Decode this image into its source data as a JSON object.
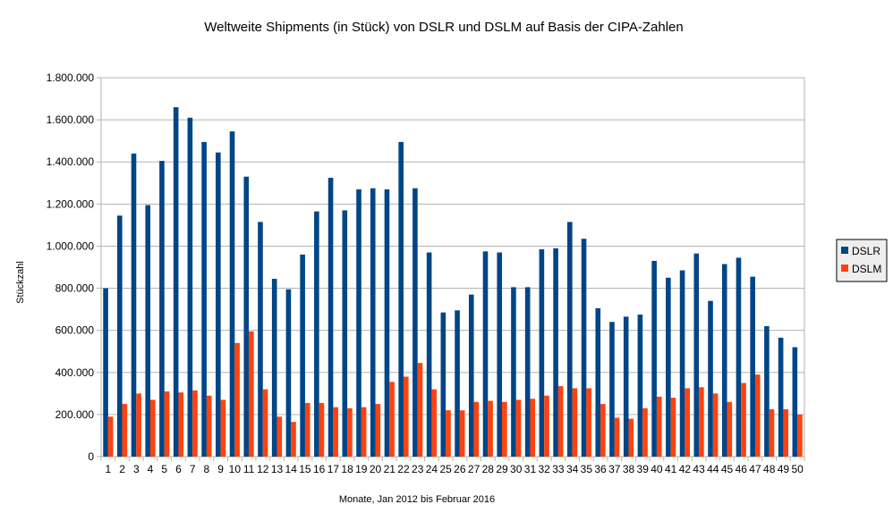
{
  "chart_data": {
    "type": "bar",
    "title": "Weltweite Shipments (in Stück) von DSLR und DSLM auf Basis der CIPA-Zahlen",
    "xlabel": "Monate, Jan 2012 bis Februar 2016",
    "ylabel": "Stückzahl",
    "ylim": [
      0,
      1800000
    ],
    "ytick_values": [
      0,
      200000,
      400000,
      600000,
      800000,
      1000000,
      1200000,
      1400000,
      1600000,
      1800000
    ],
    "ytick_labels": [
      "0",
      "200.000",
      "400.000",
      "600.000",
      "800.000",
      "1.000.000",
      "1.200.000",
      "1.400.000",
      "1.600.000",
      "1.800.000"
    ],
    "grid": true,
    "legend_position": "right",
    "categories": [
      "1",
      "2",
      "3",
      "4",
      "5",
      "6",
      "7",
      "8",
      "9",
      "10",
      "11",
      "12",
      "13",
      "14",
      "15",
      "16",
      "17",
      "18",
      "19",
      "20",
      "21",
      "22",
      "23",
      "24",
      "25",
      "26",
      "27",
      "28",
      "29",
      "30",
      "31",
      "32",
      "33",
      "34",
      "35",
      "36",
      "37",
      "38",
      "39",
      "40",
      "41",
      "42",
      "43",
      "44",
      "45",
      "46",
      "47",
      "48",
      "49",
      "50"
    ],
    "series": [
      {
        "name": "DSLR",
        "color": "#004586",
        "values": [
          800000,
          1145000,
          1440000,
          1195000,
          1405000,
          1660000,
          1610000,
          1495000,
          1445000,
          1545000,
          1330000,
          1115000,
          845000,
          795000,
          960000,
          1165000,
          1325000,
          1170000,
          1270000,
          1275000,
          1270000,
          1495000,
          1275000,
          970000,
          685000,
          695000,
          770000,
          975000,
          970000,
          805000,
          805000,
          985000,
          990000,
          1115000,
          1035000,
          705000,
          640000,
          665000,
          675000,
          930000,
          850000,
          885000,
          965000,
          740000,
          915000,
          945000,
          855000,
          620000,
          565000,
          520000
        ]
      },
      {
        "name": "DSLM",
        "color": "#ff420e",
        "values": [
          190000,
          250000,
          300000,
          270000,
          310000,
          305000,
          315000,
          290000,
          270000,
          540000,
          595000,
          320000,
          190000,
          165000,
          255000,
          255000,
          235000,
          230000,
          235000,
          250000,
          355000,
          380000,
          445000,
          320000,
          220000,
          220000,
          260000,
          265000,
          260000,
          270000,
          275000,
          290000,
          335000,
          325000,
          325000,
          250000,
          185000,
          180000,
          230000,
          285000,
          280000,
          325000,
          330000,
          300000,
          260000,
          350000,
          390000,
          225000,
          225000,
          200000
        ]
      }
    ]
  }
}
